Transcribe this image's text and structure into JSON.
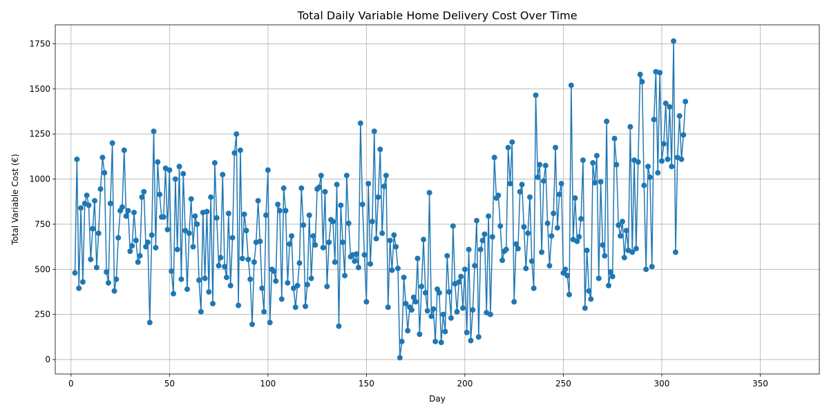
{
  "chart_data": {
    "type": "line",
    "title": "Total Daily Variable Home Delivery Cost Over Time",
    "xlabel": "Day",
    "ylabel": "Total Variable Cost (€)",
    "xlim": [
      -8,
      380
    ],
    "ylim": [
      -80,
      1855
    ],
    "xticks": [
      0,
      50,
      100,
      150,
      200,
      250,
      300,
      350
    ],
    "yticks": [
      0,
      250,
      500,
      750,
      1000,
      1250,
      1500,
      1750
    ],
    "grid": true,
    "color": "#1f77b4",
    "marker": "circle",
    "x_start": 2,
    "values": [
      480,
      1110,
      395,
      840,
      430,
      865,
      910,
      855,
      555,
      725,
      880,
      510,
      700,
      945,
      1120,
      1035,
      485,
      425,
      865,
      1200,
      380,
      445,
      675,
      825,
      845,
      1160,
      795,
      825,
      600,
      630,
      815,
      660,
      540,
      575,
      900,
      930,
      625,
      650,
      205,
      690,
      1265,
      620,
      1095,
      915,
      790,
      790,
      1060,
      720,
      1050,
      490,
      365,
      1000,
      610,
      1070,
      445,
      1030,
      715,
      390,
      700,
      890,
      625,
      795,
      750,
      440,
      265,
      815,
      450,
      820,
      375,
      900,
      310,
      1090,
      785,
      520,
      565,
      1025,
      515,
      455,
      810,
      410,
      675,
      1145,
      1250,
      300,
      1160,
      560,
      805,
      715,
      555,
      445,
      195,
      540,
      650,
      880,
      655,
      395,
      265,
      800,
      1050,
      205,
      500,
      490,
      435,
      860,
      825,
      335,
      950,
      825,
      425,
      640,
      685,
      395,
      290,
      410,
      535,
      950,
      745,
      295,
      415,
      800,
      450,
      685,
      635,
      945,
      955,
      1020,
      620,
      930,
      405,
      650,
      775,
      765,
      540,
      970,
      185,
      855,
      650,
      465,
      1020,
      755,
      570,
      580,
      545,
      585,
      510,
      1310,
      860,
      580,
      320,
      975,
      530,
      765,
      1265,
      670,
      900,
      1165,
      700,
      960,
      1020,
      290,
      660,
      495,
      690,
      625,
      505,
      10,
      100,
      455,
      310,
      160,
      290,
      275,
      345,
      320,
      560,
      140,
      405,
      665,
      370,
      270,
      925,
      240,
      280,
      100,
      390,
      370,
      95,
      250,
      155,
      575,
      375,
      230,
      740,
      420,
      265,
      430,
      460,
      285,
      500,
      150,
      610,
      105,
      275,
      520,
      770,
      125,
      610,
      660,
      695,
      260,
      795,
      250,
      680,
      1120,
      895,
      910,
      740,
      550,
      600,
      610,
      1175,
      975,
      1205,
      320,
      640,
      615,
      930,
      970,
      735,
      505,
      700,
      900,
      545,
      395,
      1465,
      1010,
      1080,
      595,
      990,
      1075,
      755,
      520,
      685,
      810,
      1175,
      730,
      915,
      975,
      480,
      500,
      465,
      360,
      1520,
      665,
      895,
      655,
      680,
      780,
      1105,
      285,
      605,
      380,
      335,
      1090,
      980,
      1130,
      450,
      985,
      635,
      575,
      1320,
      410,
      485,
      460,
      1225,
      1080,
      745,
      685,
      765,
      565,
      715,
      605,
      1290,
      595,
      1105,
      615,
      1095,
      1580,
      1540,
      965,
      500,
      1070,
      1010,
      515,
      1330,
      1595,
      1035,
      1590,
      1100,
      1195,
      1420,
      1110,
      1400,
      1070,
      1765,
      595,
      1120,
      1350,
      1110,
      1245,
      1430
    ]
  }
}
